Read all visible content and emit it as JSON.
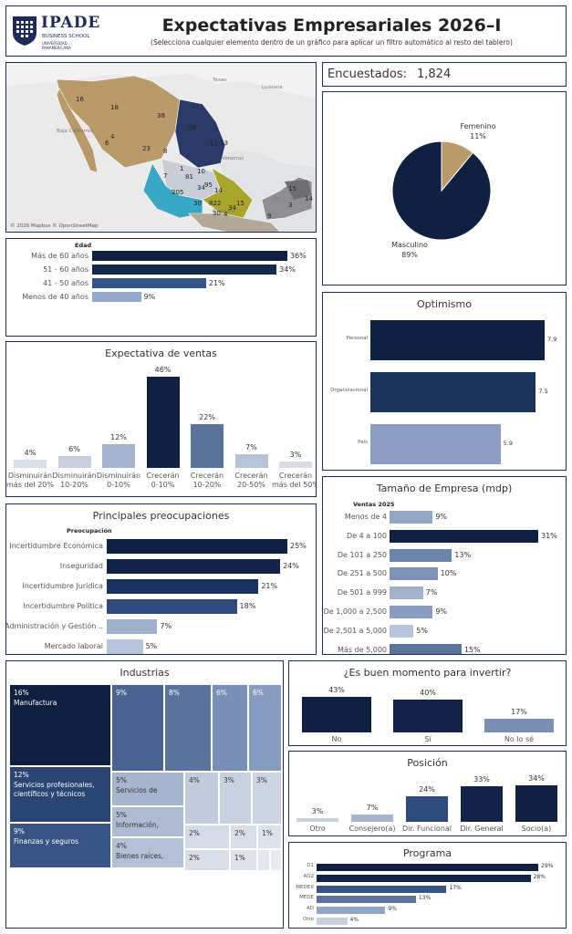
{
  "header": {
    "logo_main": "IPADE",
    "logo_sub": "BUSINESS SCHOOL",
    "logo_sub2": "UNIVERSIDAD PANAMERICANA",
    "title": "Expectativas Empresariales 2026–I",
    "subtitle": "(Selecciona cualquier elemento dentro de un gráfico para aplicar un filtro automático al resto del tablero)"
  },
  "map": {
    "attribution": "© 2026 Mapbox © OpenStreetMap",
    "place_labels": [
      "Texas",
      "Luisiana",
      "Baja California",
      "Veracruz",
      "Guerrero",
      "Ca"
    ],
    "region_values": [
      "16",
      "18",
      "38",
      "28",
      "11",
      "13",
      "8",
      "23",
      "4",
      "6",
      "7",
      "1",
      "10",
      "81",
      "34",
      "95",
      "14",
      "205",
      "30",
      "822",
      "15",
      "34",
      "30",
      "15",
      "14",
      "3",
      "9",
      "4"
    ]
  },
  "surveyed": {
    "label": "Encuestados:",
    "value": "1,824"
  },
  "gender": {
    "chart_data": {
      "type": "pie",
      "slices": [
        {
          "name": "Femenino",
          "value": 11,
          "label": "11%",
          "color": "#b99a6b"
        },
        {
          "name": "Masculino",
          "value": 89,
          "label": "89%",
          "color": "#0f2040"
        }
      ]
    }
  },
  "age": {
    "chart_data": {
      "type": "bar",
      "header": "Edad",
      "categories": [
        "Más de 60 años",
        "51 - 60 años",
        "41 - 50 años",
        "Menos de 40 años"
      ],
      "values": [
        36,
        34,
        21,
        9
      ],
      "labels": [
        "36%",
        "34%",
        "21%",
        "9%"
      ],
      "colors": [
        "#0f2040",
        "#16284d",
        "#34548a",
        "#98aac9"
      ]
    }
  },
  "optimism": {
    "title": "Optimismo",
    "chart_data": {
      "type": "bar",
      "categories": [
        "Personal",
        "Organizacional",
        "País"
      ],
      "values": [
        7.9,
        7.5,
        5.9
      ],
      "labels": [
        "7.9",
        "7.5",
        "5.9"
      ],
      "colors": [
        "#0f2040",
        "#1a3358",
        "#8c9fc2"
      ]
    }
  },
  "sales": {
    "title": "Expectativa de ventas",
    "chart_data": {
      "type": "bar",
      "categories": [
        [
          "Disminuirán",
          "más del 20%"
        ],
        [
          "Disminuirán",
          "10-20%"
        ],
        [
          "Disminuirán",
          "0-10%"
        ],
        [
          "Crecerán",
          "0-10%"
        ],
        [
          "Crecerán",
          "10-20%"
        ],
        [
          "Crecerán",
          "20-50%"
        ],
        [
          "Crecerán",
          "más del 50%"
        ]
      ],
      "values": [
        4,
        6,
        12,
        46,
        22,
        7,
        3
      ],
      "labels": [
        "4%",
        "6%",
        "12%",
        "46%",
        "22%",
        "7%",
        "3%"
      ],
      "colors": [
        "#d9dde5",
        "#c9d0dd",
        "#a6b4cd",
        "#0f2040",
        "#5b729a",
        "#b7c2d6",
        "#d9dde5"
      ]
    }
  },
  "company_size": {
    "title": "Tamaño de Empresa (mdp)",
    "chart_data": {
      "type": "bar",
      "header": "Ventas 2025",
      "categories": [
        "Menos de 4",
        "De 4 a 100",
        "De 101 a 250",
        "De 251 a 500",
        "De 501 a 999",
        "De 1,000 a 2,500",
        "De 2,501 a 5,000",
        "Más de 5,000"
      ],
      "values": [
        9,
        31,
        13,
        10,
        7,
        9,
        5,
        15
      ],
      "labels": [
        "9%",
        "31%",
        "13%",
        "10%",
        "7%",
        "9%",
        "5%",
        "15%"
      ],
      "colors": [
        "#93a5c5",
        "#0f2040",
        "#6c83aa",
        "#7d92b6",
        "#a3b2cc",
        "#8a9dc0",
        "#b9c5da",
        "#5b729a"
      ]
    }
  },
  "concerns": {
    "title": "Principales preocupaciones",
    "chart_data": {
      "type": "bar",
      "header": "Preocupación",
      "categories": [
        "Incertidumbre Económica",
        "Inseguridad",
        "Incertidumbre Jurídica",
        "Incertidumbre Política",
        "Administración y Gestión ..",
        "Mercado laboral"
      ],
      "values": [
        25,
        24,
        21,
        18,
        7,
        5
      ],
      "labels": [
        "25%",
        "24%",
        "21%",
        "18%",
        "7%",
        "5%"
      ],
      "colors": [
        "#0f2040",
        "#12244a",
        "#1c3260",
        "#2e4a7c",
        "#9fb0cb",
        "#b9c5da"
      ]
    }
  },
  "industries": {
    "title": "Industrias",
    "tiles": [
      {
        "pct": "16%",
        "name": "Manufactura"
      },
      {
        "pct": "12%",
        "name": "Servicios profesionales, científicos y técnicos"
      },
      {
        "pct": "9%",
        "name": "Finanzas y seguros"
      },
      {
        "pct": "9%",
        "name": ""
      },
      {
        "pct": "8%",
        "name": ""
      },
      {
        "pct": "6%",
        "name": ""
      },
      {
        "pct": "6%",
        "name": ""
      },
      {
        "pct": "5%",
        "name": "Servicios de"
      },
      {
        "pct": "5%",
        "name": "Información,"
      },
      {
        "pct": "4%",
        "name": "Bienes raíces,"
      },
      {
        "pct": "4%",
        "name": ""
      },
      {
        "pct": "3%",
        "name": ""
      },
      {
        "pct": "3%",
        "name": ""
      },
      {
        "pct": "2%",
        "name": ""
      },
      {
        "pct": "2%",
        "name": ""
      },
      {
        "pct": "1%",
        "name": ""
      },
      {
        "pct": "2%",
        "name": ""
      },
      {
        "pct": "1%",
        "name": ""
      }
    ]
  },
  "invest": {
    "title": "¿Es buen momento para invertir?",
    "chart_data": {
      "type": "bar",
      "categories": [
        "No",
        "Sí",
        "No lo sé"
      ],
      "values": [
        43,
        40,
        17
      ],
      "labels": [
        "43%",
        "40%",
        "17%"
      ],
      "colors": [
        "#0f2040",
        "#12244a",
        "#7a8fb3"
      ]
    }
  },
  "position": {
    "title": "Posición",
    "chart_data": {
      "type": "bar",
      "categories": [
        "Otro",
        "Consejero(a)",
        "Dir. Funcional",
        "Dir. General",
        "Socio(a)"
      ],
      "values": [
        3,
        7,
        24,
        33,
        34
      ],
      "labels": [
        "3%",
        "7%",
        "24%",
        "33%",
        "34%"
      ],
      "colors": [
        "#c9d0dd",
        "#a6b4cd",
        "#2e4a7c",
        "#12244a",
        "#0f2040"
      ]
    }
  },
  "program": {
    "title": "Programa",
    "chart_data": {
      "type": "bar",
      "categories": [
        "D1",
        "AD2",
        "MEDEX",
        "MEDE",
        "AD",
        "Otro"
      ],
      "values": [
        29,
        28,
        17,
        13,
        9,
        4
      ],
      "labels": [
        "29%",
        "28%",
        "17%",
        "13%",
        "9%",
        "4%"
      ],
      "colors": [
        "#0f2040",
        "#12244a",
        "#34548a",
        "#5b729a",
        "#93a5c5",
        "#c9d0dd"
      ]
    }
  }
}
